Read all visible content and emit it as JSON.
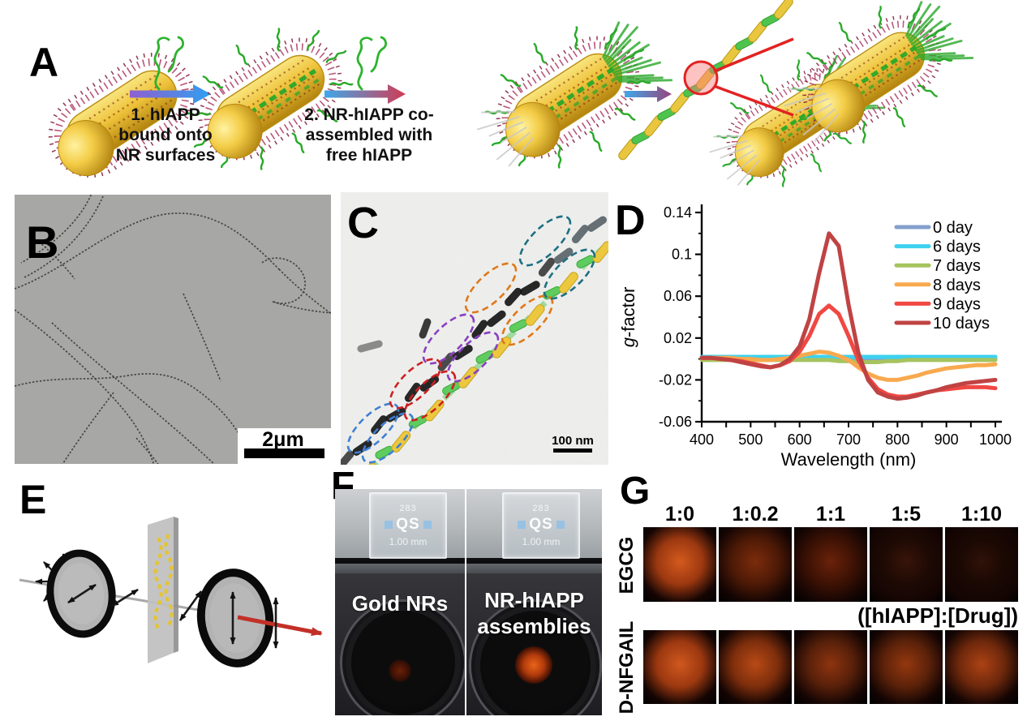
{
  "panels": {
    "a": {
      "label": "A",
      "step1": [
        "1. hIAPP",
        "bound onto",
        "NR surfaces"
      ],
      "step2": [
        "2. NR-hIAPP co-",
        "assembled with",
        "free hIAPP"
      ]
    },
    "b": {
      "label": "B",
      "scale_bar": "2μm"
    },
    "c": {
      "label": "C",
      "scale_bar": "100 nm",
      "ellipse_colors": [
        "#3f7fd2",
        "#cc2020",
        "#8a3fc0",
        "#e07818",
        "#1f6f82"
      ]
    },
    "d": {
      "label": "D"
    },
    "e": {
      "label": "E"
    },
    "f": {
      "label": "F",
      "cuvette": {
        "model": "283",
        "brand": "QS",
        "path_length": "1.00 mm"
      },
      "left_label": "Gold NRs",
      "right_label": [
        "NR-hIAPP",
        "assemblies"
      ]
    },
    "g": {
      "label": "G",
      "columns": [
        "1:0",
        "1:0.2",
        "1:1",
        "1:5",
        "1:10"
      ],
      "rows": [
        "EGCG",
        "D-NFGAIL"
      ],
      "ratio_label": "([hIAPP]:[Drug])",
      "cells": {
        "EGCG": [
          [
            "#d45a1e",
            "#9c3810"
          ],
          [
            "#7c2c0c",
            "#4e1a06"
          ],
          [
            "#6a220a",
            "#3e1204"
          ],
          [
            "#38140a",
            "#1e0a04"
          ],
          [
            "#301208",
            "#1a0803"
          ]
        ],
        "D-NFGAIL": [
          [
            "#d0581e",
            "#9c3810"
          ],
          [
            "#b84a16",
            "#7e2e0c"
          ],
          [
            "#8e3410",
            "#58200a"
          ],
          [
            "#94380e",
            "#5c220a"
          ],
          [
            "#ac4214",
            "#6e280c"
          ]
        ]
      }
    }
  },
  "chart_data": {
    "type": "line",
    "title": "",
    "xlabel": "Wavelength (nm)",
    "ylabel": "g-factor",
    "ylabel_italic_first": true,
    "xlim": [
      400,
      1000
    ],
    "ylim": [
      -0.06,
      0.14
    ],
    "xticks": [
      400,
      500,
      600,
      700,
      800,
      900,
      1000
    ],
    "minor_tick_step_x": 50,
    "yticks": [
      0.14,
      0.1,
      0.06,
      0.02,
      -0.02,
      -0.06
    ],
    "ytick_labels": [
      "0.14",
      "0.1",
      "0.06",
      "0.02",
      "-0.02",
      "-0.06"
    ],
    "grid": false,
    "legend_position": "top-right",
    "x": [
      400,
      420,
      440,
      460,
      480,
      500,
      520,
      540,
      560,
      580,
      600,
      620,
      640,
      660,
      680,
      700,
      720,
      740,
      760,
      780,
      800,
      820,
      840,
      860,
      880,
      900,
      920,
      940,
      960,
      980,
      1000
    ],
    "series": [
      {
        "name": "0 day",
        "color": "#84a0cc",
        "values": [
          0,
          0,
          0,
          0,
          0,
          0,
          0,
          0,
          0,
          0,
          0,
          0,
          0,
          0,
          0,
          0,
          0,
          0,
          0,
          0,
          0,
          0,
          0,
          0,
          0,
          0,
          0,
          0,
          0,
          0,
          0
        ]
      },
      {
        "name": "6 days",
        "color": "#3dd2f0",
        "values": [
          0.002,
          0.002,
          0.002,
          0.002,
          0.002,
          0.002,
          0.002,
          0.002,
          0.002,
          0.002,
          0.002,
          0.002,
          0.002,
          0.002,
          0.002,
          0.002,
          0.002,
          0.002,
          0.002,
          0.002,
          0.002,
          0.002,
          0.002,
          0.002,
          0.002,
          0.002,
          0.002,
          0.002,
          0.002,
          0.002,
          0.002
        ]
      },
      {
        "name": "7 days",
        "color": "#a6c35f",
        "values": [
          -0.001,
          -0.001,
          -0.001,
          -0.001,
          -0.001,
          -0.001,
          -0.001,
          -0.001,
          -0.001,
          -0.001,
          -0.001,
          -0.001,
          -0.001,
          -0.001,
          -0.002,
          -0.002,
          -0.003,
          -0.003,
          -0.003,
          -0.002,
          -0.002,
          -0.001,
          -0.001,
          -0.001,
          -0.001,
          -0.001,
          -0.001,
          -0.001,
          -0.001,
          -0.001,
          -0.001
        ]
      },
      {
        "name": "8 days",
        "color": "#f8a94e",
        "values": [
          0.001,
          0.001,
          0.001,
          0.001,
          0,
          0,
          -0.001,
          -0.001,
          0,
          0.001,
          0.003,
          0.005,
          0.007,
          0.006,
          0.003,
          -0.001,
          -0.008,
          -0.014,
          -0.018,
          -0.02,
          -0.02,
          -0.018,
          -0.016,
          -0.013,
          -0.011,
          -0.009,
          -0.008,
          -0.007,
          -0.006,
          -0.006,
          -0.005
        ]
      },
      {
        "name": "9 days",
        "color": "#f04843",
        "values": [
          0.001,
          0.001,
          0,
          -0.001,
          -0.002,
          -0.004,
          -0.006,
          -0.008,
          -0.006,
          -0.002,
          0.007,
          0.022,
          0.043,
          0.051,
          0.043,
          0.022,
          -0.001,
          -0.018,
          -0.029,
          -0.034,
          -0.036,
          -0.036,
          -0.034,
          -0.032,
          -0.03,
          -0.029,
          -0.028,
          -0.027,
          -0.027,
          -0.027,
          -0.028
        ]
      },
      {
        "name": "10 days",
        "color": "#c04343",
        "values": [
          0.001,
          0.001,
          0,
          -0.001,
          -0.003,
          -0.005,
          -0.007,
          -0.008,
          -0.006,
          0,
          0.012,
          0.038,
          0.082,
          0.12,
          0.108,
          0.052,
          0.006,
          -0.02,
          -0.032,
          -0.036,
          -0.038,
          -0.037,
          -0.035,
          -0.032,
          -0.03,
          -0.027,
          -0.025,
          -0.023,
          -0.022,
          -0.021,
          -0.02
        ]
      }
    ]
  }
}
